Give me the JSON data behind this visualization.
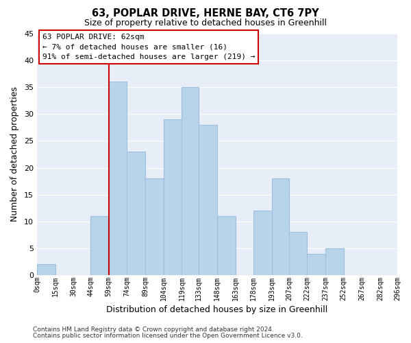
{
  "title": "63, POPLAR DRIVE, HERNE BAY, CT6 7PY",
  "subtitle": "Size of property relative to detached houses in Greenhill",
  "xlabel": "Distribution of detached houses by size in Greenhill",
  "ylabel": "Number of detached properties",
  "bar_edges": [
    0,
    15,
    30,
    44,
    59,
    74,
    89,
    104,
    119,
    133,
    148,
    163,
    178,
    193,
    207,
    222,
    237,
    252,
    267,
    282,
    296
  ],
  "bar_heights": [
    2,
    0,
    0,
    11,
    36,
    23,
    18,
    29,
    35,
    28,
    11,
    0,
    12,
    18,
    8,
    4,
    5,
    0,
    0,
    0
  ],
  "tick_labels": [
    "0sqm",
    "15sqm",
    "30sqm",
    "44sqm",
    "59sqm",
    "74sqm",
    "89sqm",
    "104sqm",
    "119sqm",
    "133sqm",
    "148sqm",
    "163sqm",
    "178sqm",
    "193sqm",
    "207sqm",
    "222sqm",
    "237sqm",
    "252sqm",
    "267sqm",
    "282sqm",
    "296sqm"
  ],
  "bar_color": "#b8d4ea",
  "bar_edge_color": "#a0bfdf",
  "highlight_edge_color": "#cc0000",
  "highlight_bar_index": 4,
  "ylim": [
    0,
    45
  ],
  "yticks": [
    0,
    5,
    10,
    15,
    20,
    25,
    30,
    35,
    40,
    45
  ],
  "annotation_title": "63 POPLAR DRIVE: 62sqm",
  "annotation_line1": "← 7% of detached houses are smaller (16)",
  "annotation_line2": "91% of semi-detached houses are larger (219) →",
  "property_line_x": 59,
  "footer_line1": "Contains HM Land Registry data © Crown copyright and database right 2024.",
  "footer_line2": "Contains public sector information licensed under the Open Government Licence v3.0.",
  "plot_bg_color": "#e8eef8",
  "fig_bg_color": "#ffffff",
  "grid_color": "#ffffff"
}
